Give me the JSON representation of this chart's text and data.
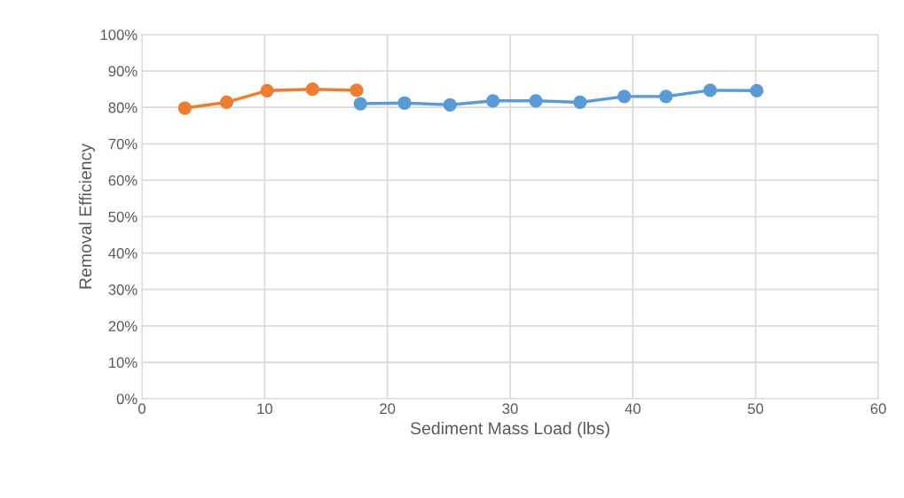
{
  "chart_data": {
    "type": "line",
    "xlabel": "Sediment Mass Load (lbs)",
    "ylabel": "Removal Efficiency",
    "series": [
      {
        "color": "#ed7d31",
        "x": [
          3.5,
          6.9,
          10.2,
          13.9,
          17.5
        ],
        "values": [
          79.8,
          81.4,
          84.6,
          85.0,
          84.7
        ]
      },
      {
        "color": "#5b9bd5",
        "x": [
          17.8,
          21.4,
          25.1,
          28.6,
          32.1,
          35.7,
          39.3,
          42.7,
          46.3,
          50.1
        ],
        "values": [
          81.0,
          81.2,
          80.7,
          81.8,
          81.8,
          81.4,
          83.0,
          83.0,
          84.7,
          84.6
        ]
      }
    ],
    "xlim": [
      0,
      60
    ],
    "xticks": [
      0,
      10,
      20,
      30,
      40,
      50,
      60
    ],
    "ylim": [
      0,
      100
    ],
    "yticks": [
      {
        "value": 0,
        "label": "0%"
      },
      {
        "value": 10,
        "label": "10%"
      },
      {
        "value": 20,
        "label": "20%"
      },
      {
        "value": 30,
        "label": "30%"
      },
      {
        "value": 40,
        "label": "40%"
      },
      {
        "value": 50,
        "label": "50%"
      },
      {
        "value": 60,
        "label": "60%"
      },
      {
        "value": 70,
        "label": "70%"
      },
      {
        "value": 80,
        "label": "80%"
      },
      {
        "value": 90,
        "label": "90%"
      },
      {
        "value": 100,
        "label": "100%"
      }
    ],
    "grid": true,
    "marker": "circle",
    "line_style": "solid",
    "legend": false
  }
}
